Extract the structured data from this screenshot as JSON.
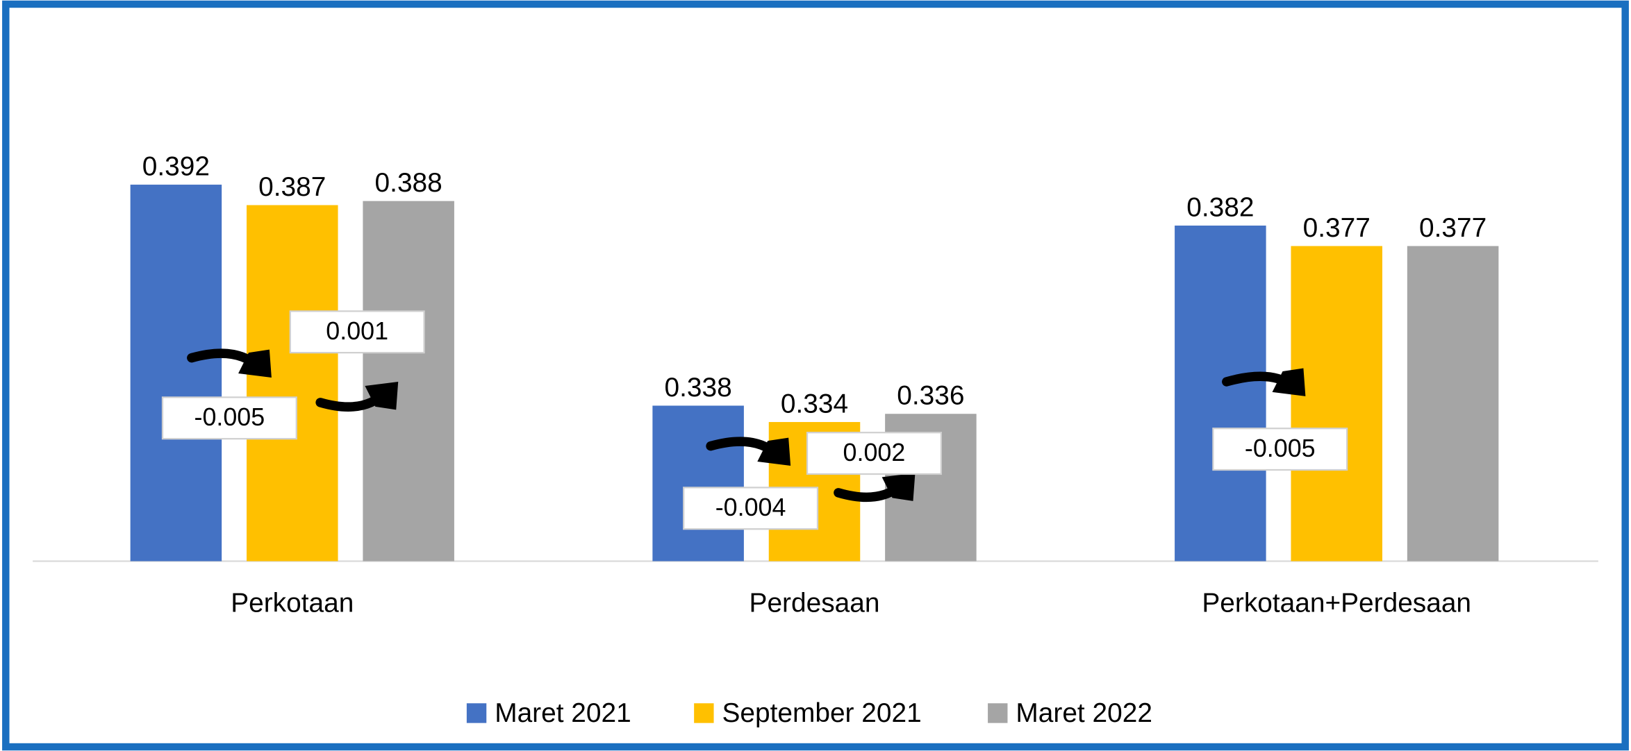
{
  "chart_data": {
    "type": "bar",
    "categories": [
      "Perkotaan",
      "Perdesaan",
      "Perkotaan+Perdesaan"
    ],
    "series": [
      {
        "name": "Maret 2021",
        "color": "#4472c4",
        "values": [
          0.392,
          0.338,
          0.382
        ]
      },
      {
        "name": "September 2021",
        "color": "#ffc000",
        "values": [
          0.387,
          0.334,
          0.377
        ]
      },
      {
        "name": "Maret 2022",
        "color": "#a5a5a5",
        "values": [
          0.388,
          0.336,
          0.377
        ]
      }
    ],
    "ylim": [
      0.3,
      0.41
    ],
    "legend": "bottom",
    "annotations": [
      "-0.005",
      "0.001",
      "-0.004",
      "0.002",
      "-0.005"
    ]
  }
}
